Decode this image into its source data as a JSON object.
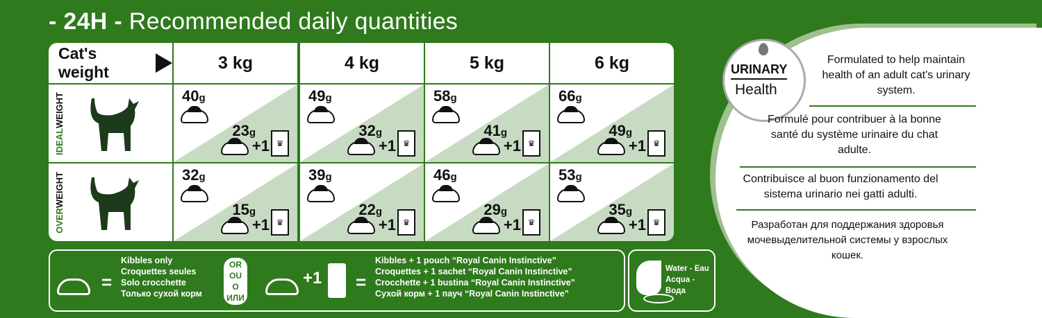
{
  "title": {
    "prefix": "- 24H -",
    "text": "Recommended daily quantities"
  },
  "table": {
    "header_label": "Cat's weight",
    "weights": [
      "3 kg",
      "4 kg",
      "5 kg",
      "6 kg"
    ],
    "rows": [
      {
        "label_a": "IDEAL",
        "label_b": "WEIGHT",
        "dry": [
          "40",
          "49",
          "58",
          "66"
        ],
        "wet": [
          "23",
          "32",
          "41",
          "49"
        ]
      },
      {
        "label_a": "OVER",
        "label_b": "WEIGHT",
        "dry": [
          "32",
          "39",
          "46",
          "53"
        ],
        "wet": [
          "15",
          "22",
          "29",
          "35"
        ]
      }
    ],
    "unit": "g",
    "plus": "+1"
  },
  "legend": {
    "equals": "=",
    "kibbles": [
      "Kibbles only",
      "Croquettes seules",
      "Solo crocchette",
      "Только сухой корм"
    ],
    "or": [
      "OR",
      "OU",
      "O",
      "ИЛИ"
    ],
    "plus": "+1",
    "mixed": [
      "Kibbles + 1 pouch “Royal Canin Instinctive”",
      "Croquettes + 1 sachet “Royal Canin Instinctive”",
      "Crocchette + 1 bustina “Royal Canin Instinctive”",
      "Сухой корм + 1 пауч “Royal Canin Instinctive”"
    ],
    "water": [
      "Water - Eau",
      "Acqua - Вода"
    ]
  },
  "badge": {
    "line1": "URINARY",
    "line2": "Health"
  },
  "claims": {
    "en": "Formulated to help maintain health of an adult cat's urinary system.",
    "fr": "Formulé pour contribuer à la bonne santé du système urinaire du chat adulte.",
    "it": "Contribuisce al buon funzionamento del sistema urinario nei gatti adulti.",
    "ru": "Разработан для поддержания здоровья мочевыделительной системы у взрослых кошек."
  },
  "colors": {
    "brand_green": "#2e7a1c",
    "light_green": "#c7dbc2"
  }
}
